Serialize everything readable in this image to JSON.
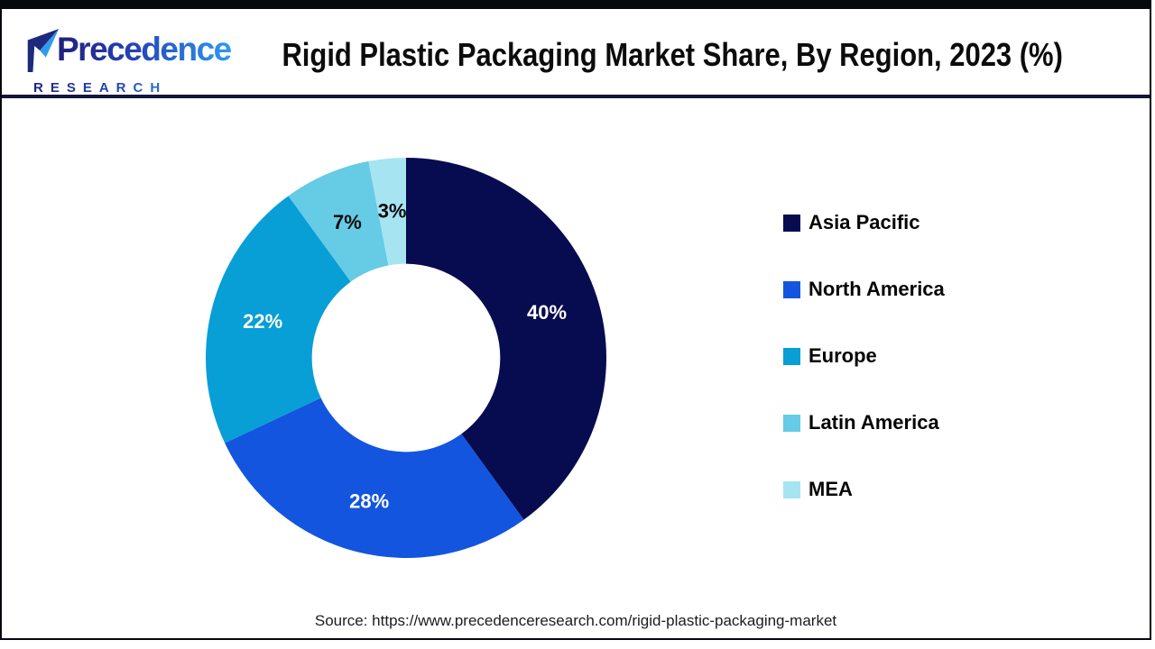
{
  "header": {
    "logo": {
      "brand": "Precedence",
      "subbrand": "RESEARCH"
    },
    "title": "Rigid Plastic Packaging Market Share, By Region, 2023 (%)"
  },
  "chart_data": {
    "type": "pie",
    "variant": "donut",
    "title": "Rigid Plastic Packaging Market Share, By Region, 2023 (%)",
    "unit": "%",
    "categories": [
      "Asia Pacific",
      "North America",
      "Europe",
      "Latin America",
      "MEA"
    ],
    "values": [
      40,
      28,
      22,
      7,
      3
    ],
    "slice_labels": [
      "40%",
      "28%",
      "22%",
      "7%",
      "3%"
    ],
    "colors": [
      "#070b4f",
      "#1355de",
      "#089ed6",
      "#66cbe4",
      "#a6e4f2"
    ],
    "label_colors": [
      "#ffffff",
      "#ffffff",
      "#ffffff",
      "#0a0a0a",
      "#0a0a0a"
    ],
    "start_angle_deg": 0,
    "direction": "clockwise",
    "inner_radius_ratio": 0.47,
    "legend_position": "right",
    "hole_color": "#ffffff"
  },
  "footer": {
    "source": "Source: https://www.precedenceresearch.com/rigid-plastic-packaging-market"
  }
}
